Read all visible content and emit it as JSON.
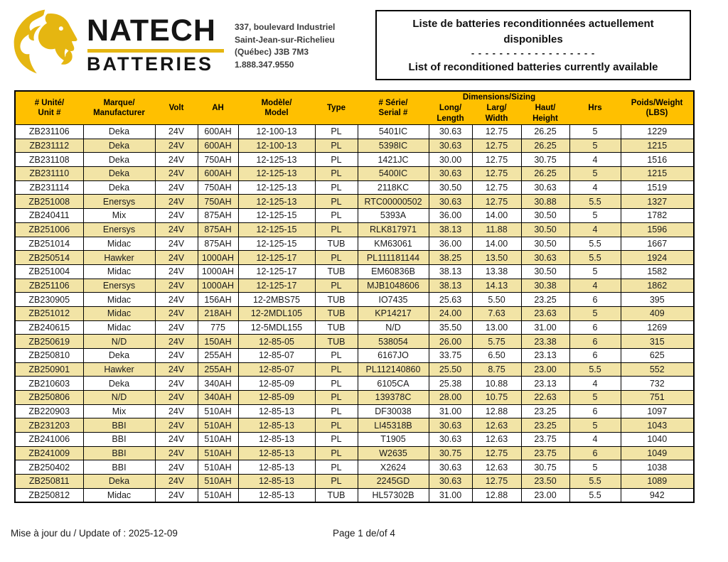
{
  "colors": {
    "header_gold": "#FFC000",
    "row_alt": "#F2E4A6",
    "logo_gold": "#E5B611"
  },
  "logo": {
    "brand_line1": "NATECH",
    "brand_line2": "BATTERIES"
  },
  "address": {
    "line1": "337, boulevard Industriel",
    "line2": "Saint-Jean-sur-Richelieu",
    "line3": "(Québec) J3B 7M3",
    "line4": "1.888.347.9550"
  },
  "title": {
    "fr": "Liste de batteries reconditionnées actuellement disponibles",
    "separator": "- - - - - - - - - - - - - - - - - -",
    "en": "List of reconditioned batteries currently available"
  },
  "table": {
    "headers": {
      "unit": "# Unité/\nUnit #",
      "manufacturer": "Marque/\nManufacturer",
      "volt": "Volt",
      "ah": "AH",
      "model": "Modèle/\nModel",
      "type": "Type",
      "serial": "# Série/\nSerial #",
      "dimensions": "Dimensions/Sizing",
      "long": "Long/\nLength",
      "larg": "Larg/\nWidth",
      "haut": "Haut/\nHeight",
      "hrs": "Hrs",
      "weight": "Poids/Weight\n(LBS)"
    },
    "column_keys": [
      "unit",
      "manufacturer",
      "volt",
      "ah",
      "model",
      "type",
      "serial",
      "long",
      "larg",
      "haut",
      "hrs",
      "weight"
    ],
    "rows": [
      [
        "ZB231106",
        "Deka",
        "24V",
        "600AH",
        "12-100-13",
        "PL",
        "5401IC",
        "30.63",
        "12.75",
        "26.25",
        "5",
        "1229"
      ],
      [
        "ZB231112",
        "Deka",
        "24V",
        "600AH",
        "12-100-13",
        "PL",
        "5398IC",
        "30.63",
        "12.75",
        "26.25",
        "5",
        "1215"
      ],
      [
        "ZB231108",
        "Deka",
        "24V",
        "750AH",
        "12-125-13",
        "PL",
        "1421JC",
        "30.00",
        "12.75",
        "30.75",
        "4",
        "1516"
      ],
      [
        "ZB231110",
        "Deka",
        "24V",
        "600AH",
        "12-125-13",
        "PL",
        "5400IC",
        "30.63",
        "12.75",
        "26.25",
        "5",
        "1215"
      ],
      [
        "ZB231114",
        "Deka",
        "24V",
        "750AH",
        "12-125-13",
        "PL",
        "2118KC",
        "30.50",
        "12.75",
        "30.63",
        "4",
        "1519"
      ],
      [
        "ZB251008",
        "Enersys",
        "24V",
        "750AH",
        "12-125-13",
        "PL",
        "RTC00000502",
        "30.63",
        "12.75",
        "30.88",
        "5.5",
        "1327"
      ],
      [
        "ZB240411",
        "Mix",
        "24V",
        "875AH",
        "12-125-15",
        "PL",
        "5393A",
        "36.00",
        "14.00",
        "30.50",
        "5",
        "1782"
      ],
      [
        "ZB251006",
        "Enersys",
        "24V",
        "875AH",
        "12-125-15",
        "PL",
        "RLK817971",
        "38.13",
        "11.88",
        "30.50",
        "4",
        "1596"
      ],
      [
        "ZB251014",
        "Midac",
        "24V",
        "875AH",
        "12-125-15",
        "TUB",
        "KM63061",
        "36.00",
        "14.00",
        "30.50",
        "5.5",
        "1667"
      ],
      [
        "ZB250514",
        "Hawker",
        "24V",
        "1000AH",
        "12-125-17",
        "PL",
        "PL111181144",
        "38.25",
        "13.50",
        "30.63",
        "5.5",
        "1924"
      ],
      [
        "ZB251004",
        "Midac",
        "24V",
        "1000AH",
        "12-125-17",
        "TUB",
        "EM60836B",
        "38.13",
        "13.38",
        "30.50",
        "5",
        "1582"
      ],
      [
        "ZB251106",
        "Enersys",
        "24V",
        "1000AH",
        "12-125-17",
        "PL",
        "MJB1048606",
        "38.13",
        "14.13",
        "30.38",
        "4",
        "1862"
      ],
      [
        "ZB230905",
        "Midac",
        "24V",
        "156AH",
        "12-2MBS75",
        "TUB",
        "IO7435",
        "25.63",
        "5.50",
        "23.25",
        "6",
        "395"
      ],
      [
        "ZB251012",
        "Midac",
        "24V",
        "218AH",
        "12-2MDL105",
        "TUB",
        "KP14217",
        "24.00",
        "7.63",
        "23.63",
        "5",
        "409"
      ],
      [
        "ZB240615",
        "Midac",
        "24V",
        "775",
        "12-5MDL155",
        "TUB",
        "N/D",
        "35.50",
        "13.00",
        "31.00",
        "6",
        "1269"
      ],
      [
        "ZB250619",
        "N/D",
        "24V",
        "150AH",
        "12-85-05",
        "TUB",
        "538054",
        "26.00",
        "5.75",
        "23.38",
        "6",
        "315"
      ],
      [
        "ZB250810",
        "Deka",
        "24V",
        "255AH",
        "12-85-07",
        "PL",
        "6167JO",
        "33.75",
        "6.50",
        "23.13",
        "6",
        "625"
      ],
      [
        "ZB250901",
        "Hawker",
        "24V",
        "255AH",
        "12-85-07",
        "PL",
        "PL112140860",
        "25.50",
        "8.75",
        "23.00",
        "5.5",
        "552"
      ],
      [
        "ZB210603",
        "Deka",
        "24V",
        "340AH",
        "12-85-09",
        "PL",
        "6105CA",
        "25.38",
        "10.88",
        "23.13",
        "4",
        "732"
      ],
      [
        "ZB250806",
        "N/D",
        "24V",
        "340AH",
        "12-85-09",
        "PL",
        "139378C",
        "28.00",
        "10.75",
        "22.63",
        "5",
        "751"
      ],
      [
        "ZB220903",
        "Mix",
        "24V",
        "510AH",
        "12-85-13",
        "PL",
        "DF30038",
        "31.00",
        "12.88",
        "23.25",
        "6",
        "1097"
      ],
      [
        "ZB231203",
        "BBI",
        "24V",
        "510AH",
        "12-85-13",
        "PL",
        "LI45318B",
        "30.63",
        "12.63",
        "23.25",
        "5",
        "1043"
      ],
      [
        "ZB241006",
        "BBI",
        "24V",
        "510AH",
        "12-85-13",
        "PL",
        "T1905",
        "30.63",
        "12.63",
        "23.75",
        "4",
        "1040"
      ],
      [
        "ZB241009",
        "BBI",
        "24V",
        "510AH",
        "12-85-13",
        "PL",
        "W2635",
        "30.75",
        "12.75",
        "23.75",
        "6",
        "1049"
      ],
      [
        "ZB250402",
        "BBI",
        "24V",
        "510AH",
        "12-85-13",
        "PL",
        "X2624",
        "30.63",
        "12.63",
        "30.75",
        "5",
        "1038"
      ],
      [
        "ZB250811",
        "Deka",
        "24V",
        "510AH",
        "12-85-13",
        "PL",
        "2245GD",
        "30.63",
        "12.75",
        "23.50",
        "5.5",
        "1089"
      ],
      [
        "ZB250812",
        "Midac",
        "24V",
        "510AH",
        "12-85-13",
        "TUB",
        "HL57302B",
        "31.00",
        "12.88",
        "23.00",
        "5.5",
        "942"
      ]
    ]
  },
  "footer": {
    "updated": "Mise à jour du / Update of : 2025-12-09",
    "page": "Page 1 de/of 4"
  }
}
